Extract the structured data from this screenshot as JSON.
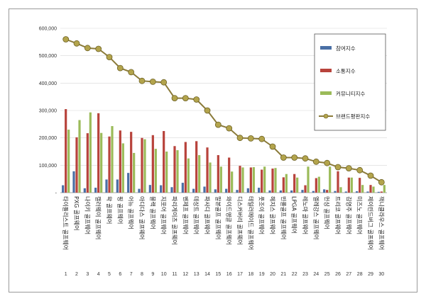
{
  "chart_data": {
    "type": "bar",
    "title": "",
    "xlabel": "",
    "ylabel": "",
    "ylim": [
      0,
      600000
    ],
    "yticks": [
      "600,000",
      "500,000",
      "400,000",
      "300,000",
      "200,000",
      "100,000",
      "-"
    ],
    "ytick_values": [
      600000,
      500000,
      400000,
      300000,
      200000,
      100000,
      0
    ],
    "legend_position": "top-right",
    "colors": {
      "참여지수": "#4a6fa5",
      "소통지수": "#b8433c",
      "커뮤니티지수": "#9bbb59",
      "브랜드평판지수": "#8b7b3a"
    },
    "categories": [
      {
        "rank": "1",
        "label": "타이틀리스트 골프웨어"
      },
      {
        "rank": "2",
        "label": "PXG 골프웨어"
      },
      {
        "rank": "3",
        "label": "나이키 골프웨어"
      },
      {
        "rank": "4",
        "label": "캘러웨이 골프웨어"
      },
      {
        "rank": "5",
        "label": "왁 골프웨어"
      },
      {
        "rank": "6",
        "label": "핑 골프웨어"
      },
      {
        "rank": "7",
        "label": "어뉴 골프웨어"
      },
      {
        "rank": "8",
        "label": "아디다스 골프웨어"
      },
      {
        "rank": "9",
        "label": "블랙 골프웨어"
      },
      {
        "rank": "10",
        "label": "지포어 골프웨어"
      },
      {
        "rank": "11",
        "label": "파리게이츠 골프웨어"
      },
      {
        "rank": "12",
        "label": "벤제프 골프웨어"
      },
      {
        "rank": "13",
        "label": "데상트 골프웨어"
      },
      {
        "rank": "14",
        "label": "파사디 골프웨어"
      },
      {
        "rank": "15",
        "label": "말본골프 골프웨어"
      },
      {
        "rank": "16",
        "label": "와이드앵글 골프웨어"
      },
      {
        "rank": "17",
        "label": "디스커버리 골프웨어"
      },
      {
        "rank": "18",
        "label": "테일러메이드 골프웨어"
      },
      {
        "rank": "19",
        "label": "풋조이 골프웨어"
      },
      {
        "rank": "20",
        "label": "헤지스 골프웨어"
      },
      {
        "rank": "21",
        "label": "빈폴골프 골프웨어"
      },
      {
        "rank": "22",
        "label": "LPGA 골프웨어"
      },
      {
        "rank": "23",
        "label": "레노마 골프웨어"
      },
      {
        "rank": "24",
        "label": "엘레강스 골프웨어"
      },
      {
        "rank": "25",
        "label": "먼싱 골프웨어"
      },
      {
        "rank": "26",
        "label": "트리코 골프웨어"
      },
      {
        "rank": "27",
        "label": "김영주 골프웨어"
      },
      {
        "rank": "28",
        "label": "미즈노 골프웨어"
      },
      {
        "rank": "29",
        "label": "제이린드버그 골프웨어"
      },
      {
        "rank": "30",
        "label": "잭니클라우스 골프웨어"
      }
    ],
    "series": [
      {
        "name": "참여지수",
        "type": "bar",
        "values": [
          27000,
          78000,
          16000,
          18000,
          48000,
          48000,
          72000,
          14000,
          28000,
          27000,
          20000,
          36000,
          14000,
          22000,
          12000,
          14000,
          10000,
          16000,
          18000,
          8000,
          8000,
          8000,
          10000,
          6000,
          12000,
          6000,
          4000,
          5000,
          4000,
          3000
        ]
      },
      {
        "name": "소통지수",
        "type": "bar",
        "values": [
          305000,
          202000,
          217000,
          290000,
          205000,
          227000,
          222000,
          200000,
          210000,
          225000,
          170000,
          185000,
          188000,
          165000,
          137000,
          128000,
          98000,
          92000,
          84000,
          88000,
          56000,
          68000,
          27000,
          53000,
          10000,
          78000,
          55000,
          54000,
          28000,
          4000
        ]
      },
      {
        "name": "커뮤니티지수",
        "type": "bar",
        "values": [
          230000,
          265000,
          293000,
          218000,
          243000,
          180000,
          145000,
          195000,
          160000,
          150000,
          155000,
          125000,
          137000,
          110000,
          95000,
          77000,
          92000,
          93000,
          95000,
          90000,
          68000,
          55000,
          95000,
          58000,
          95000,
          20000,
          55000,
          28000,
          22000,
          28000
        ]
      },
      {
        "name": "브랜드평판지수",
        "type": "line",
        "values": [
          560000,
          545000,
          528000,
          525000,
          495000,
          455000,
          440000,
          408000,
          405000,
          403000,
          345000,
          345000,
          340000,
          300000,
          248000,
          235000,
          200000,
          198000,
          196000,
          168000,
          128000,
          128000,
          125000,
          113000,
          108000,
          93000,
          89000,
          82000,
          62000,
          38000
        ]
      }
    ]
  }
}
